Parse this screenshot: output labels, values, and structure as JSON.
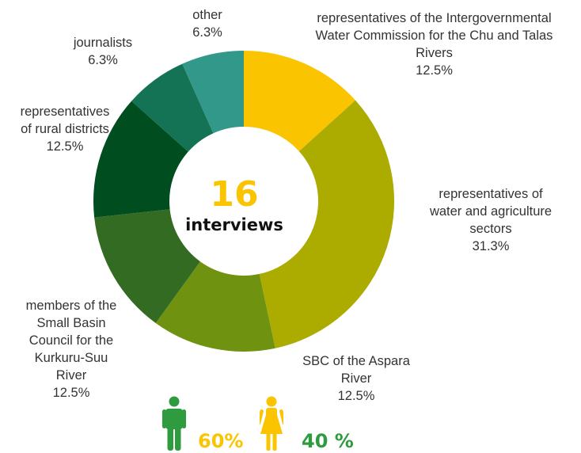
{
  "chart_data": {
    "type": "pie",
    "donut": true,
    "total_label": "16",
    "total_caption": "interviews",
    "slices": [
      {
        "label_lines": [
          "representatives of the Intergovernmental",
          "Water Commission for the Chu and Talas",
          "Rivers"
        ],
        "value_text": "12.5%",
        "value": 12.5,
        "color": "#fbc400"
      },
      {
        "label_lines": [
          "representatives of",
          "water and agriculture",
          "sectors"
        ],
        "value_text": "31.3%",
        "value": 31.3,
        "color": "#abab00"
      },
      {
        "label_lines": [
          "SBC of the Aspara",
          "River"
        ],
        "value_text": "12.5%",
        "value": 12.5,
        "color": "#6f9211"
      },
      {
        "label_lines": [
          "members of the",
          "Small Basin",
          "Council for the",
          "Kurkuru-Suu",
          "River"
        ],
        "value_text": "12.5%",
        "value": 12.5,
        "color": "#346b22"
      },
      {
        "label_lines": [
          "representatives",
          "of rural districts"
        ],
        "value_text": "12.5%",
        "value": 12.5,
        "color": "#004d1f"
      },
      {
        "label_lines": [
          "journalists"
        ],
        "value_text": "6.3%",
        "value": 6.3,
        "color": "#137354"
      },
      {
        "label_lines": [
          "other"
        ],
        "value_text": "6.3%",
        "value": 6.3,
        "color": "#32998a"
      }
    ]
  },
  "gender": {
    "male_pct": "60%",
    "female_pct": "40 %",
    "male_color": "#2e9b3f",
    "female_color": "#fbc400"
  }
}
